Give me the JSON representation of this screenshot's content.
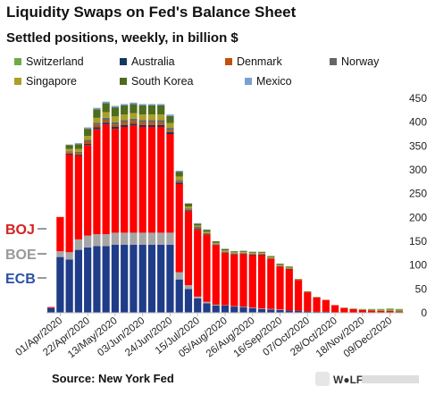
{
  "header": {
    "title": "Liquidity Swaps on Fed's Balance Sheet",
    "subtitle": "Settled positions, weekly, in billion $"
  },
  "source": "Source: New York Fed",
  "watermark": "W●LF",
  "colors": {
    "ECB": "#1f3c88",
    "BOE": "#a6a6a6",
    "BOJ": "#ff0000",
    "Switzerland": "#6faa4a",
    "Australia": "#17375e",
    "Denmark": "#c0500a",
    "Norway": "#666666",
    "Singapore": "#a8a028",
    "South Korea": "#4e6b1e",
    "Mexico": "#7ba0d0"
  },
  "chart_data": {
    "type": "bar",
    "stacked": true,
    "title": "Liquidity Swaps on Fed's Balance Sheet",
    "subtitle": "Settled positions, weekly, in billion $",
    "ylim": [
      0,
      450
    ],
    "yticks": [
      0,
      50,
      100,
      150,
      200,
      250,
      300,
      350,
      400,
      450
    ],
    "y_axis_side": "right",
    "grid": false,
    "legend_position": "top",
    "x_tick_labels": [
      "01/Apr/2020",
      "22/Apr/2020",
      "13/May/2020",
      "03/Jun/2020",
      "24/Jun/2020",
      "15/Jul/2020",
      "05/Aug/2020",
      "26/Aug/2020",
      "16/Sep/2020",
      "07/Oct/2020",
      "28/Oct/2020",
      "18/Nov/2020",
      "09/Dec/2020"
    ],
    "x": [
      "25/Mar/2020",
      "01/Apr/2020",
      "08/Apr/2020",
      "15/Apr/2020",
      "22/Apr/2020",
      "29/Apr/2020",
      "06/May/2020",
      "13/May/2020",
      "20/May/2020",
      "27/May/2020",
      "03/Jun/2020",
      "10/Jun/2020",
      "17/Jun/2020",
      "24/Jun/2020",
      "01/Jul/2020",
      "08/Jul/2020",
      "15/Jul/2020",
      "22/Jul/2020",
      "29/Jul/2020",
      "05/Aug/2020",
      "12/Aug/2020",
      "19/Aug/2020",
      "26/Aug/2020",
      "02/Sep/2020",
      "09/Sep/2020",
      "16/Sep/2020",
      "23/Sep/2020",
      "30/Sep/2020",
      "07/Oct/2020",
      "14/Oct/2020",
      "21/Oct/2020",
      "28/Oct/2020",
      "04/Nov/2020",
      "11/Nov/2020",
      "18/Nov/2020",
      "25/Nov/2020",
      "02/Dec/2020",
      "09/Dec/2020",
      "16/Dec/2020"
    ],
    "series": [
      {
        "name": "ECB",
        "values": [
          10,
          117,
          112,
          132,
          137,
          140,
          140,
          143,
          143,
          143,
          143,
          143,
          143,
          143,
          70,
          50,
          30,
          20,
          15,
          15,
          13,
          12,
          10,
          8,
          7,
          6,
          5,
          4,
          3,
          2,
          2,
          1,
          0,
          0,
          0,
          0,
          0,
          0,
          0
        ]
      },
      {
        "name": "BOE",
        "values": [
          0,
          12,
          15,
          22,
          25,
          25,
          25,
          25,
          25,
          25,
          25,
          25,
          25,
          25,
          15,
          8,
          4,
          3,
          2,
          1,
          1,
          1,
          1,
          1,
          1,
          1,
          0,
          0,
          0,
          0,
          0,
          0,
          0,
          0,
          0,
          0,
          0,
          0,
          0
        ]
      },
      {
        "name": "BOJ",
        "values": [
          2,
          72,
          205,
          175,
          190,
          220,
          230,
          218,
          222,
          225,
          222,
          222,
          222,
          207,
          185,
          155,
          140,
          140,
          125,
          110,
          108,
          110,
          110,
          112,
          105,
          90,
          86,
          65,
          40,
          30,
          25,
          15,
          10,
          8,
          6,
          5,
          4,
          4,
          3
        ]
      },
      {
        "name": "Switzerland",
        "values": [
          0,
          0,
          0,
          0,
          0,
          0,
          0,
          0,
          0,
          0,
          0,
          0,
          0,
          0,
          0,
          0,
          0,
          0,
          0,
          0,
          0,
          0,
          0,
          0,
          0,
          0,
          0,
          0,
          0,
          0,
          0,
          0,
          1,
          1,
          2,
          3,
          4,
          5,
          5
        ]
      },
      {
        "name": "Australia",
        "values": [
          0,
          0,
          2,
          2,
          3,
          4,
          4,
          4,
          4,
          4,
          4,
          4,
          4,
          4,
          3,
          2,
          2,
          1,
          1,
          1,
          1,
          1,
          1,
          1,
          1,
          1,
          1,
          0,
          0,
          0,
          0,
          0,
          0,
          0,
          0,
          0,
          0,
          0,
          0
        ]
      },
      {
        "name": "Denmark",
        "values": [
          0,
          0,
          3,
          4,
          5,
          5,
          5,
          5,
          5,
          5,
          5,
          5,
          5,
          4,
          3,
          2,
          2,
          2,
          1,
          1,
          1,
          1,
          1,
          1,
          1,
          1,
          1,
          0,
          0,
          0,
          0,
          0,
          0,
          0,
          0,
          0,
          0,
          0,
          0
        ]
      },
      {
        "name": "Norway",
        "values": [
          0,
          0,
          2,
          3,
          3,
          5,
          5,
          5,
          5,
          5,
          5,
          5,
          5,
          5,
          3,
          2,
          2,
          1,
          1,
          1,
          1,
          1,
          1,
          1,
          0,
          0,
          0,
          0,
          0,
          0,
          0,
          0,
          0,
          0,
          0,
          0,
          0,
          0,
          0
        ]
      },
      {
        "name": "Singapore",
        "values": [
          0,
          0,
          5,
          6,
          8,
          10,
          12,
          12,
          12,
          12,
          12,
          12,
          12,
          10,
          7,
          4,
          3,
          3,
          2,
          2,
          2,
          2,
          2,
          2,
          2,
          2,
          2,
          1,
          1,
          0,
          0,
          0,
          0,
          0,
          0,
          0,
          0,
          0,
          0
        ]
      },
      {
        "name": "South Korea",
        "values": [
          0,
          0,
          8,
          10,
          15,
          18,
          19,
          19,
          19,
          19,
          19,
          19,
          19,
          15,
          10,
          6,
          4,
          4,
          3,
          3,
          2,
          2,
          2,
          2,
          2,
          2,
          2,
          1,
          1,
          1,
          0,
          0,
          0,
          0,
          0,
          0,
          0,
          0,
          0
        ]
      },
      {
        "name": "Mexico",
        "values": [
          0,
          0,
          1,
          2,
          3,
          3,
          3,
          3,
          3,
          3,
          3,
          3,
          3,
          3,
          2,
          1,
          1,
          1,
          0,
          0,
          0,
          0,
          0,
          0,
          0,
          0,
          0,
          0,
          0,
          0,
          0,
          0,
          0,
          0,
          0,
          0,
          0,
          0,
          0
        ]
      }
    ],
    "legend_entries": [
      "Switzerland",
      "Australia",
      "Denmark",
      "Norway",
      "Singapore",
      "South Korea",
      "Mexico"
    ],
    "annotations": [
      "BOJ",
      "BOE",
      "ECB"
    ]
  }
}
